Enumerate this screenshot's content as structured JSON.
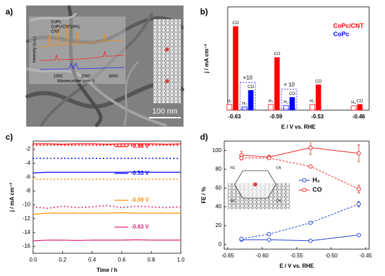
{
  "panel_a": {
    "label": "a)",
    "inset_legend": [
      "CoPc",
      "CoPc/CNT(4%)",
      "CNT"
    ],
    "inset_ylabel": "Intensity (a.u.)",
    "inset_xlabel": "Wavenumber (cm⁻¹)",
    "inset_xticks": [
      1000,
      2000,
      3000
    ],
    "scale_bar": "100 nm"
  },
  "panel_d_inset": {
    "left": "NC",
    "right": "CN"
  },
  "chart_data": [
    {
      "type": "bar",
      "label": "b)",
      "ylabel": "j / mA cm⁻²",
      "xlabel": "E / V vs. RHE",
      "categories": [
        "-0.63",
        "-0.59",
        "-0.53",
        "-0.46"
      ],
      "bar_labels": [
        "H₂",
        "CO"
      ],
      "ylim": [
        0,
        11
      ],
      "legend": "upper right",
      "series": [
        {
          "name": "CoPc/CNT",
          "color": "#ff0000",
          "h2": [
            0.6,
            0.6,
            0.6,
            0.45
          ],
          "co": [
            8.9,
            5.6,
            2.7,
            0.6
          ]
        },
        {
          "name": "CoPc",
          "color": "#0000ff",
          "h2": [
            0.35,
            0.5,
            null,
            null
          ],
          "co": [
            2.1,
            1.35,
            null,
            null
          ],
          "notes": [
            "×10",
            "× 10",
            null,
            null
          ]
        }
      ]
    },
    {
      "type": "line",
      "label": "c)",
      "ylabel": "j / mA cm⁻²",
      "xlabel": "Time / h",
      "x": [
        0,
        0.1,
        0.2,
        0.3,
        0.4,
        0.5,
        0.6,
        0.7,
        0.8,
        0.9,
        1.0
      ],
      "xlim": [
        0,
        1
      ],
      "xticks": [
        {
          "value": 0,
          "label": "0.0"
        },
        0.2,
        0.4,
        0.6,
        0.8,
        {
          "value": 1,
          "label": "1.0"
        }
      ],
      "ylim": [
        -17,
        -0.8
      ],
      "yticks": [
        -2,
        -4,
        -6,
        -8,
        -10,
        -12,
        -14,
        -16
      ],
      "series": [
        {
          "name": "-0.46 V",
          "color": "#ff0000",
          "style": "solid",
          "values": [
            -1.2,
            -1.2,
            -1.25,
            -1.2,
            -1.2,
            -1.25,
            -1.2,
            -1.2,
            -1.2,
            -1.25,
            -1.2
          ]
        },
        {
          "name": "-0.53 V",
          "color": "#0000ff",
          "style": "solid",
          "values": [
            -5.4,
            -5.3,
            -5.3,
            -5.3,
            -5.3,
            -5.3,
            -5.3,
            -5.25,
            -5.3,
            -5.3,
            -5.3
          ]
        },
        {
          "name": "-0.59 V",
          "color": "#ff8c00",
          "style": "solid",
          "values": [
            -11.4,
            -11.2,
            -11.2,
            -11.2,
            -11.2,
            -11.2,
            -11.15,
            -11.2,
            -11.2,
            -11.2,
            -11.2
          ]
        },
        {
          "name": "-0.63 V",
          "color": "#e0207a",
          "style": "solid",
          "values": [
            -15.2,
            -15.1,
            -15.1,
            -15.15,
            -15.1,
            -15.1,
            -15.1,
            -15.05,
            -15.1,
            -15.1,
            -15.1
          ]
        },
        {
          "color": "#ff0000",
          "style": "dotted",
          "values": [
            -1.4,
            -1.4,
            -1.4,
            -1.4,
            -1.4,
            -1.4,
            -1.4,
            -1.4,
            -1.4,
            -1.4,
            -1.4
          ]
        },
        {
          "color": "#0000ff",
          "style": "dotted",
          "values": [
            -3.3,
            -3.3,
            -3.3,
            -3.3,
            -3.3,
            -3.3,
            -3.3,
            -3.3,
            -3.3,
            -3.3,
            -3.3
          ]
        },
        {
          "color": "#ff8c00",
          "style": "dotted",
          "values": [
            -6.3,
            -6.3,
            -6.3,
            -6.3,
            -6.3,
            -6.3,
            -6.3,
            -6.3,
            -6.3,
            -6.3,
            -6.3
          ]
        },
        {
          "color": "#e0207a",
          "style": "dotted",
          "values": [
            -10.3,
            -10.5,
            -10.2,
            -10.4,
            -10.3,
            -10.1,
            -10.4,
            -10.2,
            -10.3,
            -10.4,
            -10.3
          ]
        }
      ]
    },
    {
      "type": "errorbar",
      "label": "d)",
      "ylabel": "FE / %",
      "xlabel": "E / V vs. RHE",
      "x": [
        -0.63,
        -0.59,
        -0.53,
        -0.46
      ],
      "xlim": [
        -0.655,
        -0.445
      ],
      "xticks": [
        -0.65,
        {
          "value": -0.6,
          "label": "-0.60"
        },
        -0.55,
        {
          "value": -0.5,
          "label": "-0.50"
        },
        -0.45
      ],
      "ylim": [
        -5,
        110
      ],
      "yticks": [
        0,
        20,
        40,
        60,
        80,
        100
      ],
      "series": [
        {
          "name": "H₂",
          "color": "#1f3fd6",
          "style": "solid",
          "values": [
            5,
            5,
            4,
            10
          ],
          "errors": [
            1,
            1,
            1,
            1
          ]
        },
        {
          "color": "#1f3fd6",
          "style": "dashed",
          "values": [
            6,
            11,
            23,
            43
          ],
          "errors": [
            1,
            1,
            1,
            3
          ]
        },
        {
          "name": "CO",
          "color": "#ee2222",
          "style": "solid",
          "values": [
            95,
            93,
            103,
            97
          ],
          "errors": [
            4,
            2,
            7,
            9
          ]
        },
        {
          "color": "#ee2222",
          "style": "dashed",
          "values": [
            92,
            92,
            83,
            59
          ],
          "errors": [
            2,
            1,
            1,
            4
          ]
        }
      ]
    }
  ]
}
